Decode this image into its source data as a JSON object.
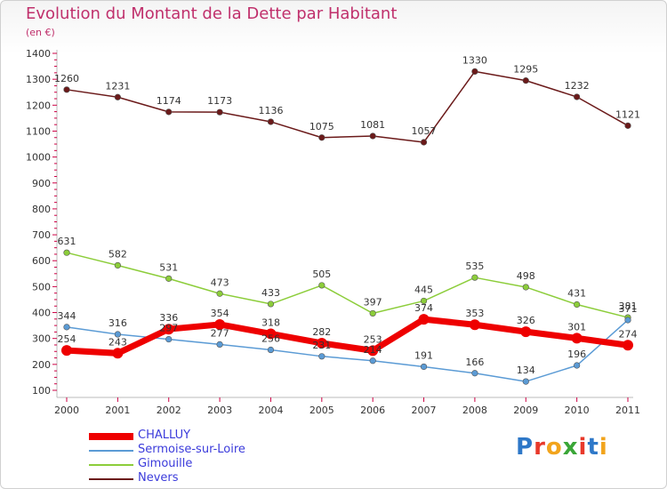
{
  "title": "Evolution du Montant de la Dette par Habitant",
  "unit": "(en €)",
  "logo": "Proxiti",
  "chart_data": {
    "type": "line",
    "title": "Evolution du Montant de la Dette par Habitant",
    "ylabel": "(en €)",
    "xlabel": "",
    "x": [
      "2000",
      "2001",
      "2002",
      "2003",
      "2004",
      "2005",
      "2006",
      "2007",
      "2008",
      "2009",
      "2010",
      "2011"
    ],
    "ylim": [
      100,
      1400
    ],
    "yticks": [
      100,
      200,
      300,
      400,
      500,
      600,
      700,
      800,
      900,
      1000,
      1100,
      1200,
      1300,
      1400
    ],
    "grid": false,
    "legend": "bottom-left",
    "series": [
      {
        "name": "CHALLUY",
        "color": "#ee0000",
        "values": [
          254,
          243,
          336,
          354,
          318,
          282,
          253,
          374,
          353,
          326,
          301,
          274
        ]
      },
      {
        "name": "Sermoise-sur-Loire",
        "color": "#5b9bd5",
        "values": [
          344,
          316,
          297,
          277,
          256,
          231,
          214,
          191,
          166,
          134,
          196,
          371
        ]
      },
      {
        "name": "Gimouille",
        "color": "#8ccd3a",
        "values": [
          631,
          582,
          531,
          473,
          433,
          505,
          397,
          445,
          535,
          498,
          431,
          381
        ]
      },
      {
        "name": "Nevers",
        "color": "#6b1a1a",
        "values": [
          1260,
          1231,
          1174,
          1173,
          1136,
          1075,
          1081,
          1057,
          1330,
          1295,
          1232,
          1121
        ]
      }
    ]
  }
}
